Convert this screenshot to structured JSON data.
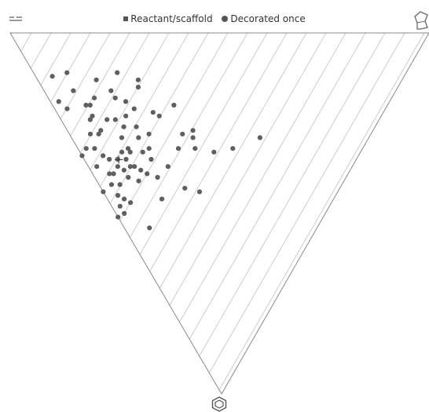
{
  "legend": {
    "items": [
      {
        "label": "Reactant/scaffold",
        "marker": "square"
      },
      {
        "label": "Decorated once",
        "marker": "circle"
      }
    ]
  },
  "icons": {
    "top_left": "menu-icon",
    "top_right": "scaffold-molecule-icon",
    "bottom": "hexagon-ring-icon"
  },
  "colors": {
    "point": "#5f5f5f",
    "triangle_edge": "#8a8a8a",
    "hatch": "#cccccc"
  },
  "chart_data": {
    "type": "scatter",
    "coordinate_system": "ternary",
    "grid": false,
    "legend_position": "top",
    "series": [
      {
        "name": "Reactant/scaffold",
        "marker": "square",
        "points": []
      },
      {
        "name": "Decorated once",
        "marker": "circle",
        "points": [
          [
            0.26,
            0.45,
            0.29
          ],
          [
            0.31,
            0.37,
            0.32
          ],
          [
            0.35,
            0.32,
            0.33
          ],
          [
            0.4,
            0.28,
            0.32
          ],
          [
            0.42,
            0.29,
            0.29
          ],
          [
            0.43,
            0.3,
            0.27
          ],
          [
            0.53,
            0.24,
            0.23
          ],
          [
            0.55,
            0.23,
            0.22
          ],
          [
            0.51,
            0.29,
            0.2
          ],
          [
            0.6,
            0.19,
            0.21
          ],
          [
            0.62,
            0.23,
            0.15
          ],
          [
            0.63,
            0.24,
            0.13
          ],
          [
            0.68,
            0.16,
            0.16
          ],
          [
            0.69,
            0.2,
            0.11
          ],
          [
            0.73,
            0.14,
            0.13
          ],
          [
            0.71,
            0.11,
            0.18
          ],
          [
            0.72,
            0.08,
            0.2
          ],
          [
            0.81,
            0.08,
            0.11
          ],
          [
            0.61,
            0.16,
            0.23
          ],
          [
            0.53,
            0.19,
            0.28
          ],
          [
            0.44,
            0.24,
            0.32
          ],
          [
            0.44,
            0.19,
            0.37
          ],
          [
            0.51,
            0.17,
            0.32
          ],
          [
            0.55,
            0.16,
            0.29
          ],
          [
            0.57,
            0.17,
            0.26
          ],
          [
            0.55,
            0.1,
            0.35
          ],
          [
            0.56,
            0.05,
            0.39
          ],
          [
            0.57,
            0.1,
            0.33
          ],
          [
            0.56,
            0.12,
            0.32
          ],
          [
            0.48,
            0.13,
            0.39
          ],
          [
            0.45,
            0.15,
            0.4
          ],
          [
            0.37,
            0.2,
            0.43
          ],
          [
            0.33,
            0.23,
            0.44
          ],
          [
            0.41,
            0.13,
            0.46
          ],
          [
            0.52,
            0.11,
            0.37
          ],
          [
            0.52,
            0.08,
            0.4
          ],
          [
            0.54,
            0.08,
            0.38
          ],
          [
            0.57,
            0.08,
            0.35
          ],
          [
            0.59,
            0.06,
            0.35
          ],
          [
            0.61,
            0.05,
            0.34
          ],
          [
            0.65,
            0.07,
            0.28
          ],
          [
            0.69,
            0.07,
            0.24
          ],
          [
            0.69,
            0.08,
            0.23
          ],
          [
            0.63,
            0.13,
            0.24
          ],
          [
            0.59,
            0.12,
            0.29
          ],
          [
            0.6,
            0.14,
            0.26
          ],
          [
            0.63,
            0.18,
            0.19
          ],
          [
            0.61,
            0.02,
            0.37
          ],
          [
            0.64,
            0.04,
            0.32
          ],
          [
            0.65,
            0.08,
            0.27
          ],
          [
            0.71,
            0.09,
            0.2
          ],
          [
            0.76,
            0.03,
            0.21
          ],
          [
            0.77,
            0.07,
            0.16
          ],
          [
            0.84,
            0.04,
            0.12
          ],
          [
            0.79,
            0.02,
            0.19
          ],
          [
            0.66,
            0.0,
            0.34
          ],
          [
            0.66,
            0.02,
            0.32
          ],
          [
            0.67,
            0.05,
            0.28
          ],
          [
            0.56,
            0.0,
            0.44
          ],
          [
            0.49,
            0.0,
            0.51
          ],
          [
            0.5,
            0.02,
            0.48
          ],
          [
            0.48,
            0.05,
            0.47
          ],
          [
            0.53,
            0.05,
            0.42
          ],
          [
            0.49,
            0.1,
            0.41
          ],
          [
            0.49,
            0.16,
            0.35
          ],
          [
            0.45,
            0.27,
            0.28
          ],
          [
            0.5,
            0.04,
            0.46
          ],
          [
            0.57,
            0.04,
            0.39
          ],
          [
            0.4,
            0.06,
            0.54
          ],
          [
            0.52,
            0.03,
            0.45
          ],
          [
            0.48,
            0.02,
            0.5
          ],
          [
            0.55,
            0.03,
            0.42
          ],
          [
            0.55,
            0.12,
            0.33
          ],
          [
            0.56,
            0.07,
            0.37
          ],
          [
            0.53,
            0.1,
            0.37
          ],
          [
            0.65,
            0.11,
            0.24
          ],
          [
            0.5,
            0.12,
            0.38
          ],
          [
            0.52,
            0.15,
            0.33
          ],
          [
            0.66,
            0.16,
            0.18
          ]
        ]
      }
    ],
    "mean_marker": [
      0.567,
      0.082,
      0.351
    ]
  }
}
